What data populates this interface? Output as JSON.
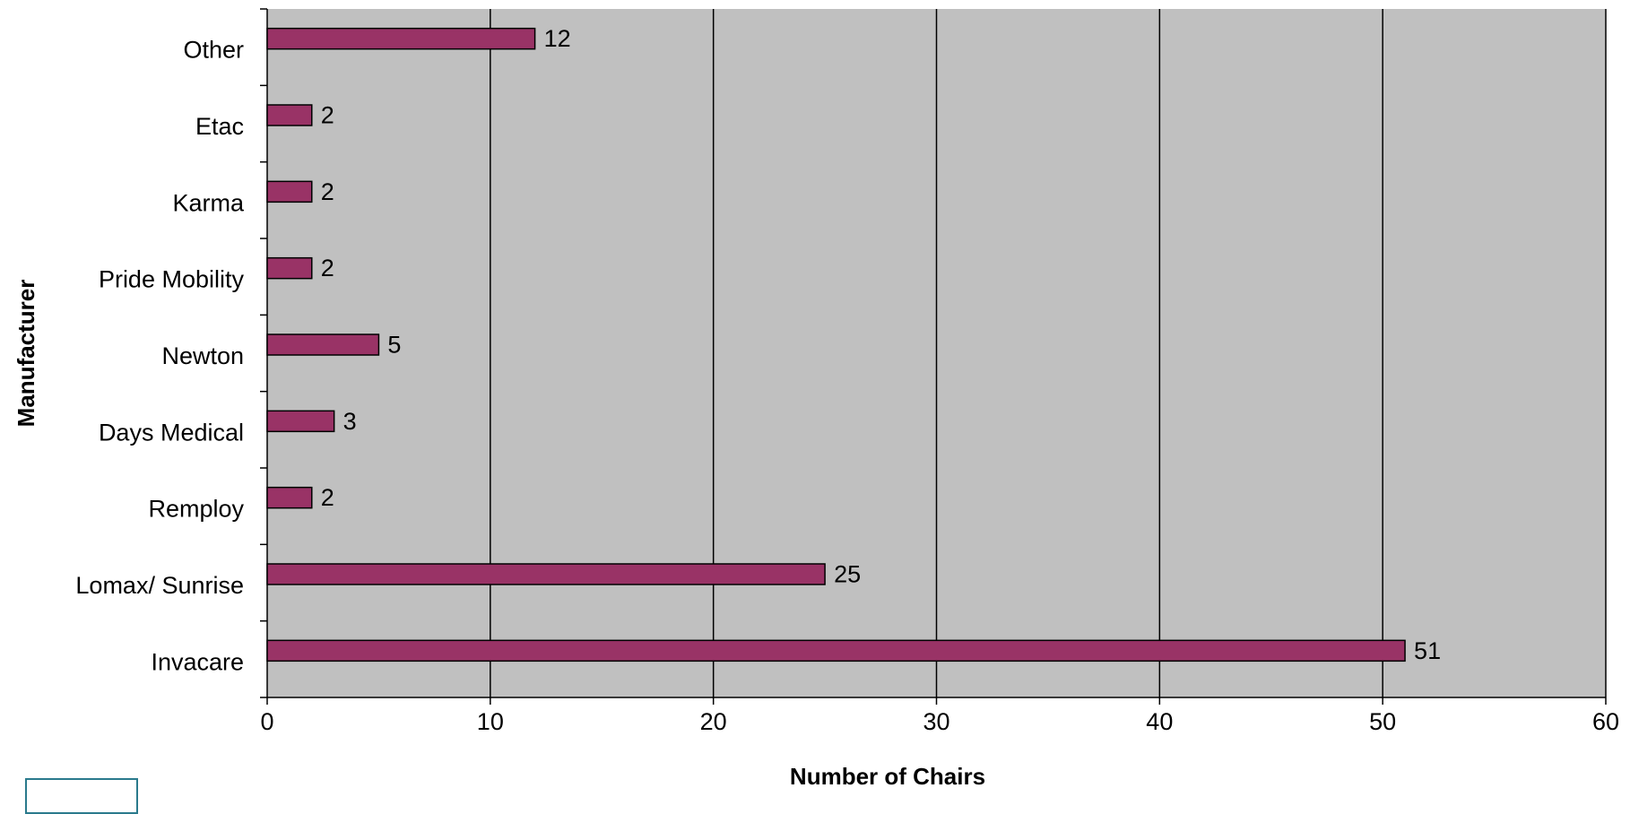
{
  "chart_data": {
    "type": "bar",
    "orientation": "horizontal",
    "categories": [
      "Invacare",
      "Lomax/ Sunrise",
      "Remploy",
      "Days Medical",
      "Newton",
      "Pride Mobility",
      "Karma",
      "Etac",
      "Other"
    ],
    "values": [
      51,
      25,
      2,
      3,
      5,
      2,
      2,
      2,
      12
    ],
    "xlabel": "Number of Chairs",
    "ylabel": "Manufacturer",
    "xlim": [
      0,
      60
    ],
    "xticks": [
      0,
      10,
      20,
      30,
      40,
      50,
      60
    ],
    "grid": "vertical",
    "legend": "none",
    "colors": {
      "bar": "#993366",
      "plot_background": "#c0c0c0",
      "gridline": "#000000"
    }
  }
}
